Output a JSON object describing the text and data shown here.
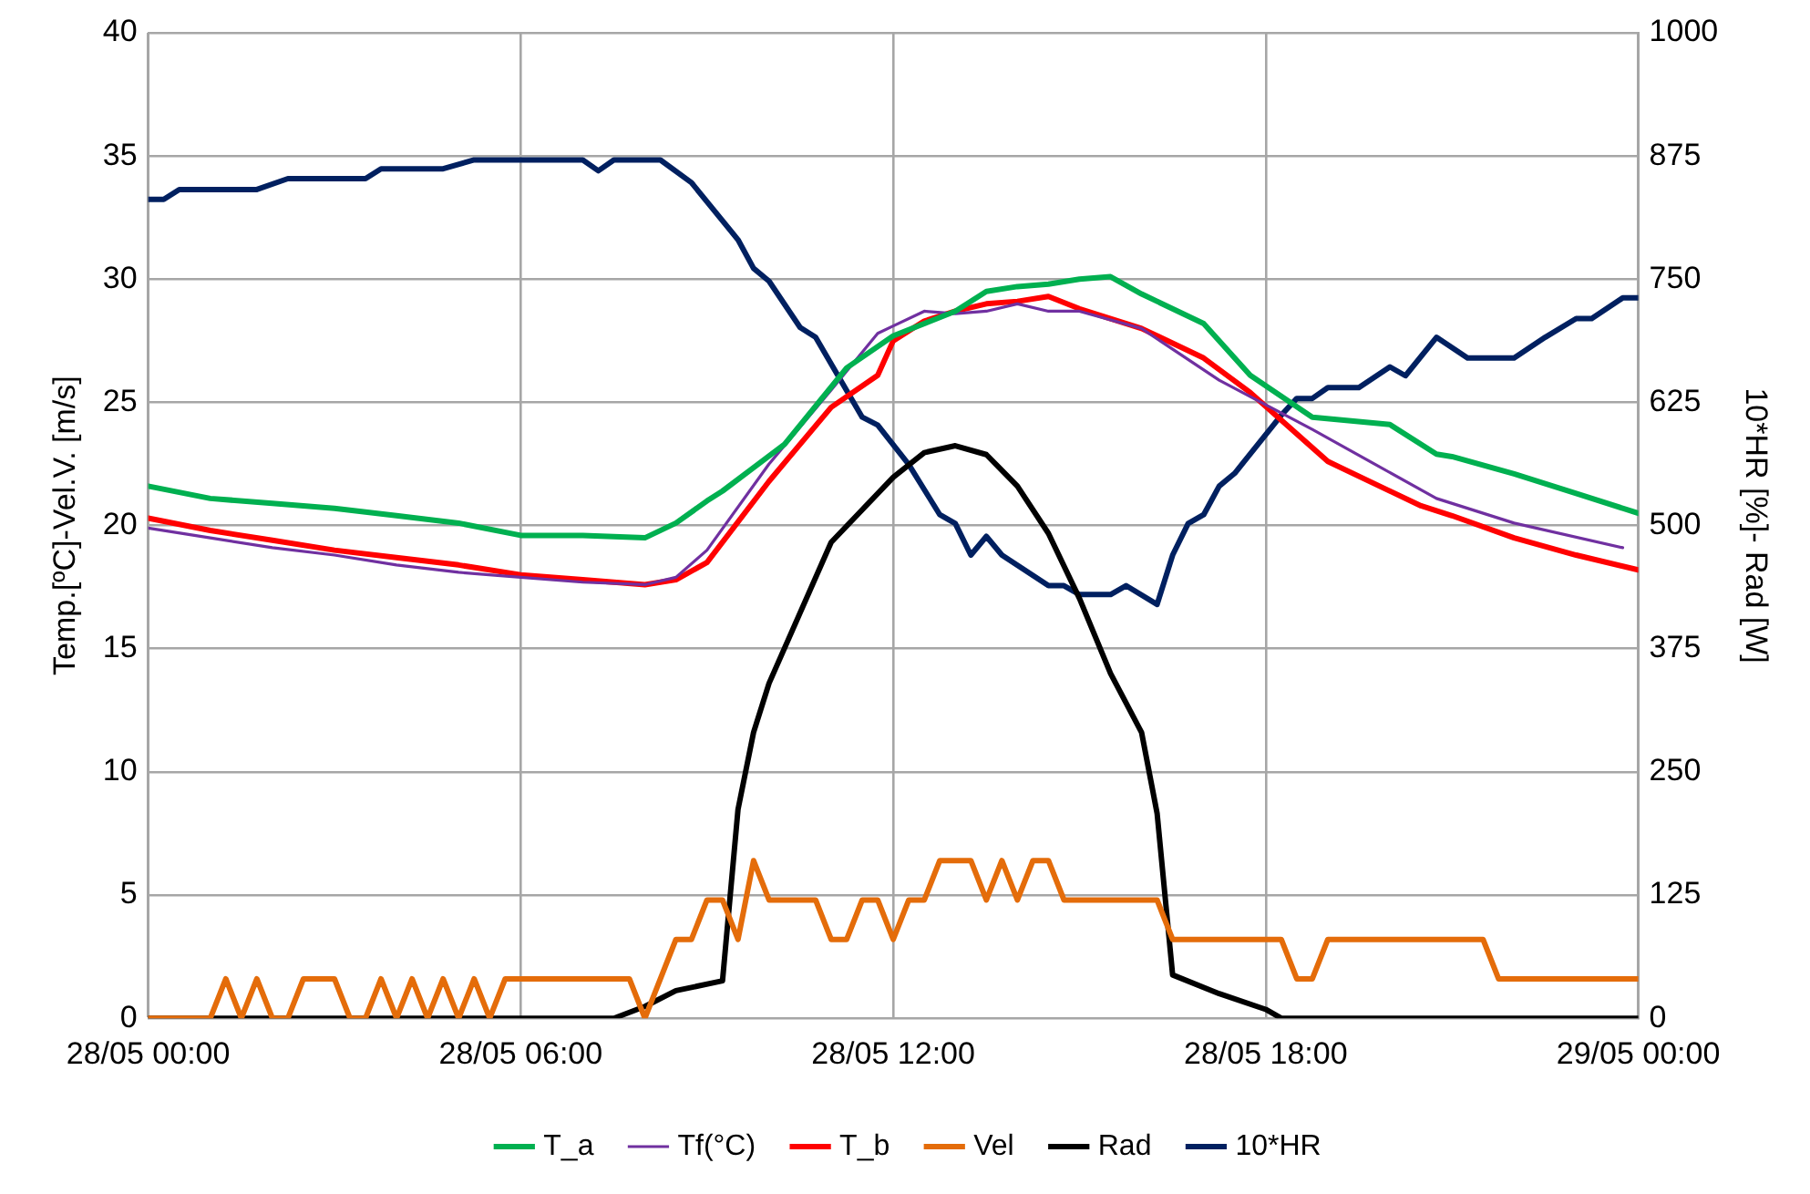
{
  "chart_data": {
    "type": "line",
    "ylabel": "Temp.[ºC]-Vel.V. [m/s]",
    "y2label": "10*HR [%]- Rad [W]",
    "xlim": [
      "--05-28T00:00",
      "--05-29T00:00"
    ],
    "xticks": [
      {
        "value": "--05-28T00:00",
        "label": "28/05 00:00"
      },
      {
        "value": "--05-28T06:00",
        "label": "28/05 06:00"
      },
      {
        "value": "--05-28T12:00",
        "label": "28/05 12:00"
      },
      {
        "value": "--05-28T18:00",
        "label": "28/05 18:00"
      },
      {
        "value": "--05-29T00:00",
        "label": "29/05 00:00"
      }
    ],
    "ylim": [
      0,
      40
    ],
    "yticks": [
      0,
      5,
      10,
      15,
      20,
      25,
      30,
      35,
      40
    ],
    "y2lim": [
      0,
      1000
    ],
    "y2ticks": [
      0,
      125,
      250,
      375,
      500,
      625,
      750,
      875,
      1000
    ],
    "grid": true,
    "legend": "bottom",
    "marker": "none",
    "line_style": "solid",
    "series": [
      {
        "name": "T_a",
        "color": "#00b050",
        "x": [
          "--05-28T00:00",
          "--05-28T01:00",
          "--05-28T02:00",
          "--05-28T03:00",
          "--05-28T04:00",
          "--05-28T05:00",
          "--05-28T06:00",
          "--05-28T07:00",
          "--05-28T08:00",
          "--05-28T08:30",
          "--05-28T09:00",
          "--05-28T09:15",
          "--05-28T10:15",
          "--05-28T11:15",
          "--05-28T12:00",
          "--05-28T13:00",
          "--05-28T13:30",
          "--05-28T14:00",
          "--05-28T14:30",
          "--05-28T15:00",
          "--05-28T15:30",
          "--05-28T16:00",
          "--05-28T17:00",
          "--05-28T17:45",
          "--05-28T18:45",
          "--05-28T20:00",
          "--05-28T20:45",
          "--05-28T21:00",
          "--05-28T22:00",
          "--05-28T23:00",
          "--05-29T00:00"
        ],
        "values": [
          21.6,
          21.1,
          20.9,
          20.7,
          20.4,
          20.1,
          19.6,
          19.6,
          19.5,
          20.1,
          21.0,
          21.4,
          23.3,
          26.4,
          27.7,
          28.7,
          29.5,
          29.7,
          29.8,
          30.0,
          30.1,
          29.4,
          28.2,
          26.1,
          24.4,
          24.1,
          22.9,
          22.8,
          22.1,
          21.3,
          20.5
        ]
      },
      {
        "name": "Tf(°C)",
        "color": "#7030a0",
        "x": [
          "--05-28T00:00",
          "--05-28T01:00",
          "--05-28T02:00",
          "--05-28T03:00",
          "--05-28T04:00",
          "--05-28T05:00",
          "--05-28T06:00",
          "--05-28T07:00",
          "--05-28T08:00",
          "--05-28T08:30",
          "--05-28T09:00",
          "--05-28T10:00",
          "--05-28T11:00",
          "--05-28T11:45",
          "--05-28T12:00",
          "--05-28T12:30",
          "--05-28T13:00",
          "--05-28T13:30",
          "--05-28T14:00",
          "--05-28T14:30",
          "--05-28T15:00",
          "--05-28T16:00",
          "--05-28T17:15",
          "--05-28T18:45",
          "--05-28T20:45",
          "--05-28T22:00",
          "--05-28T23:45"
        ],
        "values": [
          19.9,
          19.5,
          19.1,
          18.8,
          18.4,
          18.1,
          17.9,
          17.7,
          17.6,
          17.9,
          19.0,
          22.5,
          25.5,
          27.8,
          28.1,
          28.7,
          28.6,
          28.7,
          29.0,
          28.7,
          28.7,
          28.0,
          25.9,
          23.9,
          21.1,
          20.1,
          19.1
        ]
      },
      {
        "name": "T_b",
        "color": "#ff0000",
        "x": [
          "--05-28T00:00",
          "--05-28T01:00",
          "--05-28T02:00",
          "--05-28T03:00",
          "--05-28T04:00",
          "--05-28T05:00",
          "--05-28T06:00",
          "--05-28T07:00",
          "--05-28T08:00",
          "--05-28T08:30",
          "--05-28T09:00",
          "--05-28T10:00",
          "--05-28T11:00",
          "--05-28T11:45",
          "--05-28T12:00",
          "--05-28T12:30",
          "--05-28T13:00",
          "--05-28T13:30",
          "--05-28T14:00",
          "--05-28T14:30",
          "--05-28T15:00",
          "--05-28T15:30",
          "--05-28T16:00",
          "--05-28T17:00",
          "--05-28T17:45",
          "--05-28T19:00",
          "--05-28T20:30",
          "--05-28T21:00",
          "--05-28T22:00",
          "--05-28T23:00",
          "--05-29T00:00"
        ],
        "values": [
          20.3,
          19.8,
          19.4,
          19.0,
          18.7,
          18.4,
          18.0,
          17.8,
          17.6,
          17.8,
          18.5,
          21.8,
          24.8,
          26.1,
          27.5,
          28.3,
          28.7,
          29.0,
          29.1,
          29.3,
          28.8,
          28.4,
          28.0,
          26.8,
          25.4,
          22.6,
          20.8,
          20.4,
          19.5,
          18.8,
          18.2
        ]
      },
      {
        "name": "Vel",
        "color": "#e46c0a",
        "x": [
          "--05-28T00:00",
          "--05-28T01:00",
          "--05-28T01:15",
          "--05-28T01:30",
          "--05-28T01:45",
          "--05-28T02:00",
          "--05-28T02:15",
          "--05-28T02:30",
          "--05-28T03:00",
          "--05-28T03:15",
          "--05-28T03:30",
          "--05-28T03:45",
          "--05-28T04:00",
          "--05-28T04:15",
          "--05-28T04:30",
          "--05-28T04:45",
          "--05-28T05:00",
          "--05-28T05:15",
          "--05-28T05:30",
          "--05-28T05:45",
          "--05-28T07:45",
          "--05-28T08:00",
          "--05-28T08:30",
          "--05-28T08:45",
          "--05-28T09:00",
          "--05-28T09:15",
          "--05-28T09:30",
          "--05-28T09:45",
          "--05-28T10:00",
          "--05-28T10:45",
          "--05-28T11:00",
          "--05-28T11:15",
          "--05-28T11:30",
          "--05-28T11:45",
          "--05-28T12:00",
          "--05-28T12:15",
          "--05-28T12:30",
          "--05-28T12:45",
          "--05-28T13:15",
          "--05-28T13:30",
          "--05-28T13:45",
          "--05-28T14:00",
          "--05-28T14:15",
          "--05-28T14:30",
          "--05-28T14:45",
          "--05-28T16:15",
          "--05-28T16:30",
          "--05-28T18:15",
          "--05-28T18:30",
          "--05-28T18:45",
          "--05-28T19:00",
          "--05-28T21:30",
          "--05-28T21:45",
          "--05-29T00:00"
        ],
        "values": [
          0,
          0,
          1.6,
          0,
          1.6,
          0,
          0,
          1.6,
          1.6,
          0,
          0,
          1.6,
          0,
          1.6,
          0,
          1.6,
          0,
          1.6,
          0,
          1.6,
          1.6,
          0,
          3.2,
          3.2,
          4.8,
          4.8,
          3.2,
          6.4,
          4.8,
          4.8,
          3.2,
          3.2,
          4.8,
          4.8,
          3.2,
          4.8,
          4.8,
          6.4,
          6.4,
          4.8,
          6.4,
          4.8,
          6.4,
          6.4,
          4.8,
          4.8,
          3.2,
          3.2,
          1.6,
          1.6,
          3.2,
          3.2,
          1.6,
          1.6
        ]
      },
      {
        "name": "Rad",
        "color": "#000000",
        "axis": "y2",
        "x": [
          "--05-28T00:00",
          "--05-28T07:30",
          "--05-28T08:00",
          "--05-28T08:30",
          "--05-28T09:15",
          "--05-28T09:30",
          "--05-28T09:45",
          "--05-28T10:00",
          "--05-28T11:00",
          "--05-28T12:00",
          "--05-28T12:30",
          "--05-28T13:00",
          "--05-28T13:30",
          "--05-28T14:00",
          "--05-28T14:30",
          "--05-28T15:00",
          "--05-28T15:30",
          "--05-28T16:00",
          "--05-28T16:15",
          "--05-28T16:30",
          "--05-28T17:15",
          "--05-28T18:00",
          "--05-28T18:15",
          "--05-29T00:00"
        ],
        "values": [
          0,
          0,
          12,
          28,
          38,
          212,
          290,
          340,
          483,
          549,
          574,
          581,
          572,
          540,
          492,
          426,
          350,
          290,
          208,
          44,
          25,
          9,
          0,
          0
        ]
      },
      {
        "name": "10*HR",
        "color": "#002060",
        "axis": "y2",
        "x": [
          "--05-28T00:00",
          "--05-28T00:15",
          "--05-28T00:30",
          "--05-28T01:45",
          "--05-28T02:15",
          "--05-28T03:30",
          "--05-28T03:45",
          "--05-28T04:45",
          "--05-28T05:15",
          "--05-28T07:00",
          "--05-28T07:15",
          "--05-28T07:30",
          "--05-28T08:15",
          "--05-28T08:45",
          "--05-28T09:30",
          "--05-28T09:45",
          "--05-28T10:00",
          "--05-28T10:30",
          "--05-28T10:45",
          "--05-28T11:30",
          "--05-28T11:45",
          "--05-28T12:15",
          "--05-28T12:45",
          "--05-28T13:00",
          "--05-28T13:15",
          "--05-28T13:30",
          "--05-28T13:45",
          "--05-28T14:30",
          "--05-28T14:45",
          "--05-28T15:00",
          "--05-28T15:30",
          "--05-28T15:45",
          "--05-28T16:15",
          "--05-28T16:30",
          "--05-28T16:45",
          "--05-28T17:00",
          "--05-28T17:15",
          "--05-28T17:30",
          "--05-28T18:15",
          "--05-28T18:30",
          "--05-28T18:45",
          "--05-28T19:00",
          "--05-28T19:30",
          "--05-28T20:00",
          "--05-28T20:15",
          "--05-28T20:45",
          "--05-28T21:15",
          "--05-28T22:00",
          "--05-28T22:30",
          "--05-28T23:00",
          "--05-28T23:15",
          "--05-28T23:45",
          "--05-29T00:00"
        ],
        "values": [
          831,
          831,
          841,
          841,
          852,
          852,
          862,
          862,
          871,
          871,
          860,
          871,
          871,
          848,
          790,
          761,
          748,
          701,
          691,
          610,
          602,
          562,
          511,
          502,
          470,
          489,
          470,
          439,
          439,
          430,
          430,
          439,
          420,
          470,
          502,
          511,
          540,
          553,
          612,
          629,
          629,
          640,
          640,
          661,
          652,
          691,
          670,
          670,
          691,
          710,
          710,
          731,
          731
        ]
      }
    ]
  }
}
